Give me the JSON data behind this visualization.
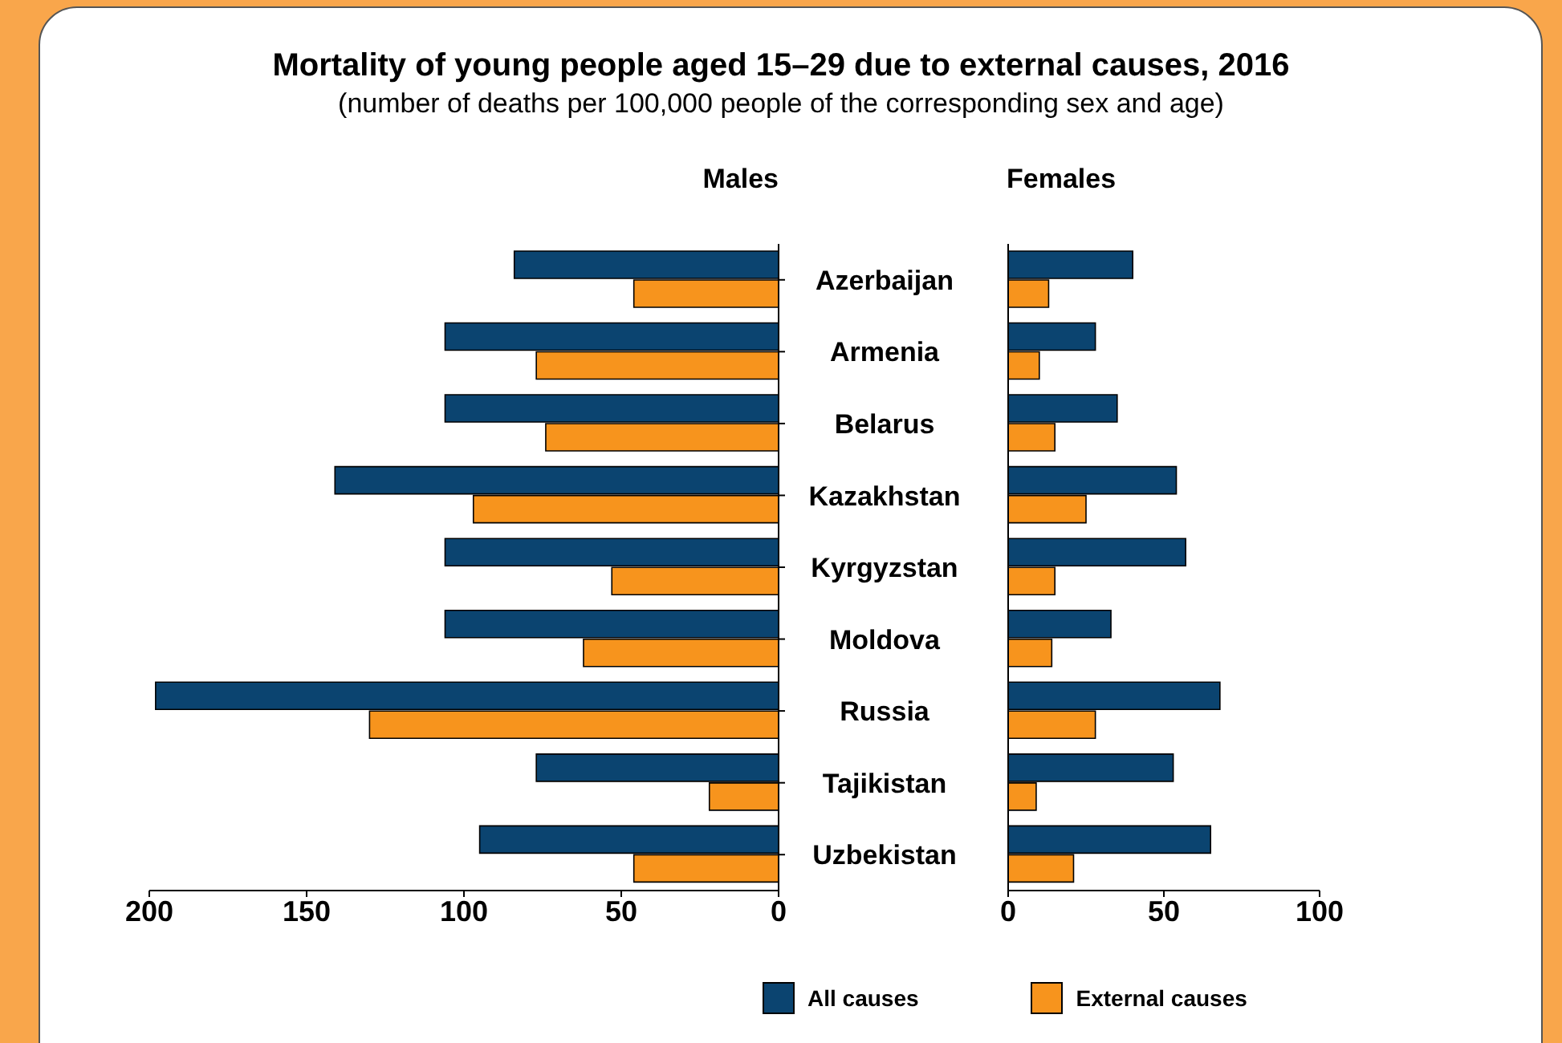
{
  "chart_data": [
    {
      "type": "other",
      "title": "Mortality of young people aged 15–29 due to external causes, 2016",
      "subtitle": "(number of deaths per 100,000 people of the corresponding sex and age)"
    },
    {
      "type": "bar",
      "orientation": "horizontal",
      "title": "Males",
      "categories": [
        "Azerbaijan",
        "Armenia",
        "Belarus",
        "Kazakhstan",
        "Kyrgyzstan",
        "Moldova",
        "Russia",
        "Tajikistan",
        "Uzbekistan"
      ],
      "series": [
        {
          "color": "#0b4470",
          "values": [
            84,
            106,
            106,
            141,
            106,
            106,
            198,
            77,
            95
          ]
        },
        {
          "color": "#f7941d",
          "values": [
            46,
            77,
            74,
            97,
            53,
            62,
            130,
            22,
            46
          ]
        }
      ],
      "xlim": [
        200,
        0
      ],
      "xticks": [
        200,
        150,
        100,
        50,
        0
      ],
      "grid": false,
      "legend": false
    },
    {
      "type": "bar",
      "orientation": "horizontal",
      "title": "Females",
      "categories": [
        null,
        null,
        null,
        null,
        null,
        null,
        null,
        null,
        null
      ],
      "series": [
        {
          "name": "All causes",
          "color": "#0b4470",
          "values": [
            40,
            28,
            35,
            54,
            57,
            33,
            68,
            53,
            65
          ]
        },
        {
          "name": "External causes",
          "color": "#f7941d",
          "values": [
            13,
            10,
            15,
            25,
            15,
            14,
            28,
            9,
            21
          ]
        }
      ],
      "xlim": [
        0,
        100
      ],
      "xticks": [
        0,
        50,
        100
      ],
      "tick_labels": "x",
      "grid": false,
      "legend": "bottom"
    }
  ]
}
